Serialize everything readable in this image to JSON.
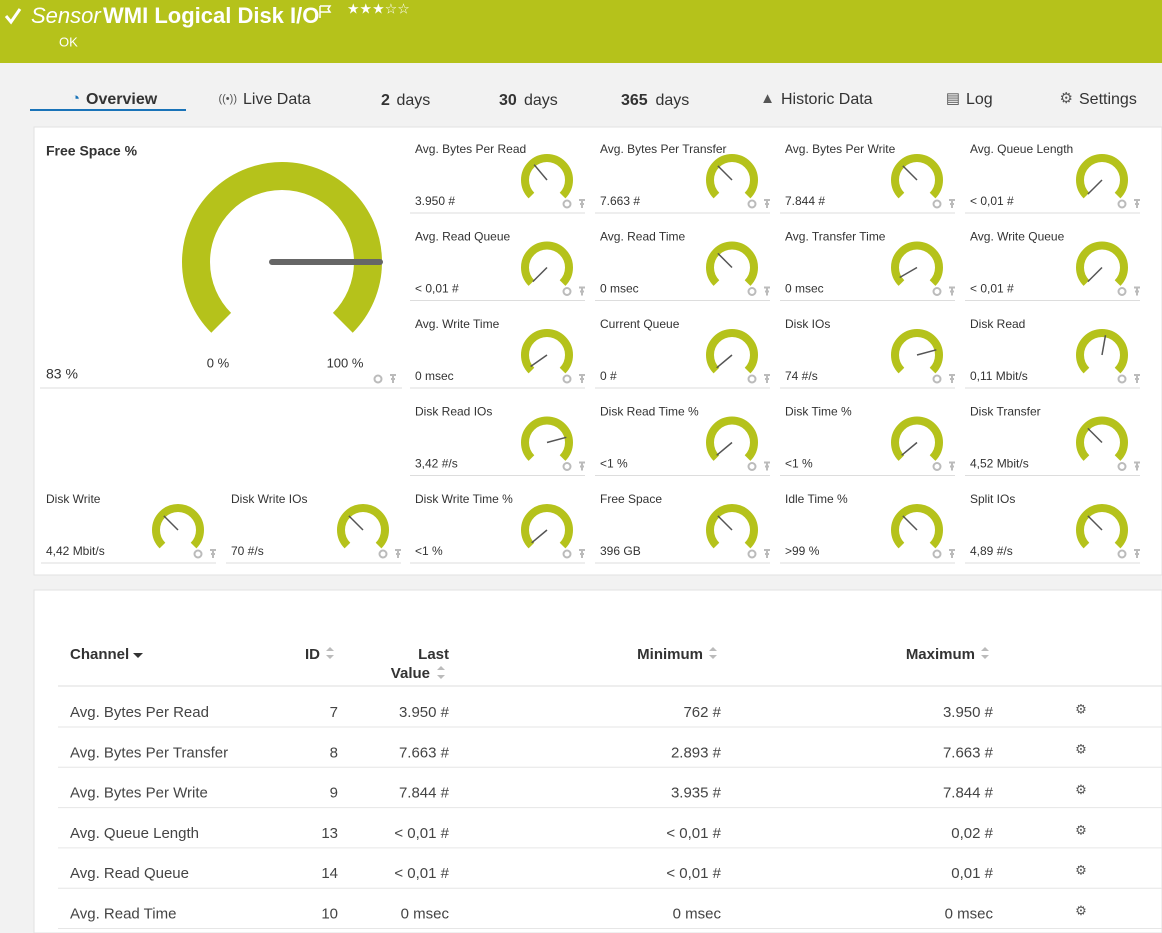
{
  "header": {
    "kind": "Sensor",
    "name": "WMI Logical Disk I/O",
    "status": "OK"
  },
  "tabs": [
    {
      "label": "Overview"
    },
    {
      "label": "Live Data"
    },
    {
      "number": "2",
      "unit": "days"
    },
    {
      "number": "30",
      "unit": "days"
    },
    {
      "number": "365",
      "unit": "days"
    },
    {
      "label": "Historic Data"
    },
    {
      "label": "Log"
    },
    {
      "label": "Settings"
    }
  ],
  "main_gauge": {
    "label": "Free Space %",
    "value": "83 %",
    "min": "0 %",
    "max": "100 %"
  },
  "gauges": [
    {
      "label": "Avg. Bytes Per Read",
      "value": "3.950 #"
    },
    {
      "label": "Avg. Bytes Per Transfer",
      "value": "7.663 #"
    },
    {
      "label": "Avg. Bytes Per Write",
      "value": "7.844 #"
    },
    {
      "label": "Avg. Queue Length",
      "value": "< 0,01 #"
    },
    {
      "label": "Avg. Read Queue",
      "value": "< 0,01 #"
    },
    {
      "label": "Avg. Read Time",
      "value": "0 msec"
    },
    {
      "label": "Avg. Transfer Time",
      "value": "0 msec"
    },
    {
      "label": "Avg. Write Queue",
      "value": "< 0,01 #"
    },
    {
      "label": "Avg. Write Time",
      "value": "0 msec"
    },
    {
      "label": "Current Queue",
      "value": "0 #"
    },
    {
      "label": "Disk IOs",
      "value": "74 #/s"
    },
    {
      "label": "Disk Read",
      "value": "0,11 Mbit/s"
    },
    {
      "label": "Disk Read IOs",
      "value": "3,42 #/s"
    },
    {
      "label": "Disk Read Time %",
      "value": "<1 %"
    },
    {
      "label": "Disk Time %",
      "value": "<1 %"
    },
    {
      "label": "Disk Transfer",
      "value": "4,52 Mbit/s"
    },
    {
      "label": "Disk Write",
      "value": "4,42 Mbit/s"
    },
    {
      "label": "Disk Write IOs",
      "value": "70 #/s"
    },
    {
      "label": "Disk Write Time %",
      "value": "<1 %"
    },
    {
      "label": "Free Space",
      "value": "396 GB"
    },
    {
      "label": "Idle Time %",
      "value": ">99 %"
    },
    {
      "label": "Split IOs",
      "value": "4,89 #/s"
    }
  ],
  "table": {
    "columns": [
      "Channel",
      "ID",
      "Last Value",
      "Minimum",
      "Maximum"
    ],
    "rows": [
      [
        "Avg. Bytes Per Read",
        7,
        "3.950 #",
        "762 #",
        "3.950 #"
      ],
      [
        "Avg. Bytes Per Transfer",
        8,
        "7.663 #",
        "2.893 #",
        "7.663 #"
      ],
      [
        "Avg. Bytes Per Write",
        9,
        "7.844 #",
        "3.935 #",
        "7.844 #"
      ],
      [
        "Avg. Queue Length",
        13,
        "< 0,01 #",
        "< 0,01 #",
        "0,02 #"
      ],
      [
        "Avg. Read Queue",
        14,
        "< 0,01 #",
        "< 0,01 #",
        "0,01 #"
      ],
      [
        "Avg. Read Time",
        10,
        "0 msec",
        "0 msec",
        "0 msec"
      ]
    ]
  }
}
